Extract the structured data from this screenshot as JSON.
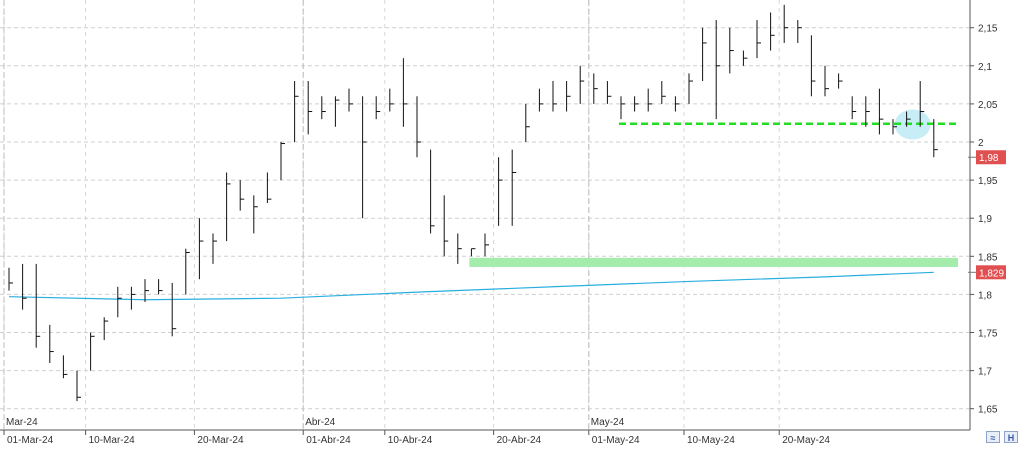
{
  "chart_data": {
    "type": "ohlc",
    "y_axis": {
      "min": 1.62,
      "max": 2.19,
      "ticks": [
        "2,15",
        "2,1",
        "2,05",
        "2",
        "1,95",
        "1,9",
        "1,85",
        "1,8",
        "1,75",
        "1,7",
        "1,65"
      ],
      "tick_values": [
        2.15,
        2.1,
        2.05,
        2.0,
        1.95,
        1.9,
        1.85,
        1.8,
        1.75,
        1.7,
        1.65
      ],
      "position": "right"
    },
    "x_axis": {
      "month_labels": [
        {
          "label": "Mar-24",
          "bar_index": 0
        },
        {
          "label": "Abr-24",
          "bar_index": 22
        },
        {
          "label": "May-24",
          "bar_index": 43
        }
      ],
      "date_labels": [
        {
          "label": "01-Mar-24",
          "bar_index": 0
        },
        {
          "label": "10-Mar-24",
          "bar_index": 6
        },
        {
          "label": "20-Mar-24",
          "bar_index": 14
        },
        {
          "label": "01-Abr-24",
          "bar_index": 22
        },
        {
          "label": "10-Abr-24",
          "bar_index": 28
        },
        {
          "label": "20-Abr-24",
          "bar_index": 36
        },
        {
          "label": "01-May-24",
          "bar_index": 43
        },
        {
          "label": "10-May-24",
          "bar_index": 50
        },
        {
          "label": "20-May-24",
          "bar_index": 57
        }
      ]
    },
    "bars": [
      [
        1.835,
        1.805,
        1.815
      ],
      [
        1.84,
        1.78,
        1.795
      ],
      [
        1.84,
        1.73,
        1.745
      ],
      [
        1.76,
        1.71,
        1.725
      ],
      [
        1.72,
        1.69,
        1.695
      ],
      [
        1.7,
        1.66,
        1.665
      ],
      [
        1.75,
        1.7,
        1.745
      ],
      [
        1.77,
        1.74,
        1.765
      ],
      [
        1.81,
        1.77,
        1.795
      ],
      [
        1.81,
        1.78,
        1.8
      ],
      [
        1.82,
        1.79,
        1.805
      ],
      [
        1.82,
        1.8,
        1.805
      ],
      [
        1.815,
        1.745,
        1.755
      ],
      [
        1.86,
        1.8,
        1.855
      ],
      [
        1.9,
        1.82,
        1.87
      ],
      [
        1.88,
        1.84,
        1.87
      ],
      [
        1.96,
        1.87,
        1.945
      ],
      [
        1.95,
        1.91,
        1.925
      ],
      [
        1.93,
        1.88,
        1.915
      ],
      [
        1.96,
        1.92,
        1.925
      ],
      [
        2.0,
        1.95,
        1.998
      ],
      [
        2.08,
        2.0,
        2.06
      ],
      [
        2.08,
        2.01,
        2.04
      ],
      [
        2.06,
        2.03,
        2.04
      ],
      [
        2.06,
        2.02,
        2.055
      ],
      [
        2.07,
        2.04,
        2.05
      ],
      [
        2.06,
        1.9,
        2.0
      ],
      [
        2.06,
        2.03,
        2.04
      ],
      [
        2.07,
        2.04,
        2.05
      ],
      [
        2.11,
        2.02,
        2.05
      ],
      [
        2.06,
        1.98,
        2.0
      ],
      [
        1.99,
        1.88,
        1.89
      ],
      [
        1.93,
        1.85,
        1.87
      ],
      [
        1.88,
        1.84,
        1.86
      ],
      [
        1.86,
        1.85,
        1.86
      ],
      [
        1.88,
        1.85,
        1.865
      ],
      [
        1.98,
        1.89,
        1.95
      ],
      [
        1.99,
        1.89,
        1.96
      ],
      [
        2.05,
        2.0,
        2.02
      ],
      [
        2.07,
        2.04,
        2.05
      ],
      [
        2.08,
        2.04,
        2.05
      ],
      [
        2.08,
        2.04,
        2.06
      ],
      [
        2.1,
        2.05,
        2.08
      ],
      [
        2.09,
        2.05,
        2.07
      ],
      [
        2.08,
        2.05,
        2.06
      ],
      [
        2.06,
        2.03,
        2.05
      ],
      [
        2.06,
        2.04,
        2.05
      ],
      [
        2.07,
        2.04,
        2.05
      ],
      [
        2.08,
        2.05,
        2.06
      ],
      [
        2.06,
        2.04,
        2.05
      ],
      [
        2.09,
        2.05,
        2.08
      ],
      [
        2.15,
        2.08,
        2.13
      ],
      [
        2.16,
        2.03,
        2.1
      ],
      [
        2.15,
        2.09,
        2.12
      ],
      [
        2.12,
        2.1,
        2.11
      ],
      [
        2.16,
        2.11,
        2.13
      ],
      [
        2.17,
        2.12,
        2.14
      ],
      [
        2.18,
        2.13,
        2.15
      ],
      [
        2.16,
        2.13,
        2.15
      ],
      [
        2.14,
        2.06,
        2.08
      ],
      [
        2.1,
        2.06,
        2.07
      ],
      [
        2.09,
        2.07,
        2.08
      ],
      [
        2.06,
        2.03,
        2.04
      ],
      [
        2.06,
        2.02,
        2.04
      ],
      [
        2.07,
        2.01,
        2.03
      ],
      [
        2.03,
        2.01,
        2.02
      ],
      [
        2.04,
        2.02,
        2.03
      ],
      [
        2.08,
        2.02,
        2.04
      ],
      [
        2.03,
        1.98,
        1.99
      ]
    ],
    "moving_average": {
      "color": "#29aee0",
      "points": [
        [
          0,
          1.797
        ],
        [
          10,
          1.793
        ],
        [
          20,
          1.795
        ],
        [
          30,
          1.803
        ],
        [
          40,
          1.81
        ],
        [
          50,
          1.817
        ],
        [
          60,
          1.823
        ],
        [
          68,
          1.829
        ]
      ]
    },
    "support_zone": {
      "color": "#a4ecac",
      "from_bar": 34,
      "y_low": 1.836,
      "y_high": 1.848
    },
    "dashed_level": {
      "color": "#22dd22",
      "from_bar": 45,
      "y": 2.024
    },
    "highlight": {
      "color": "#bdeaf4",
      "bar_index": 66,
      "y": 2.023
    },
    "price_tags": [
      {
        "label": "1,98",
        "value": 1.98,
        "color": "#e05050"
      },
      {
        "label": "1,829",
        "value": 1.829,
        "color": "#e05050"
      }
    ]
  },
  "toolbar": {
    "zoom_label": "≈",
    "h_label": "H"
  }
}
